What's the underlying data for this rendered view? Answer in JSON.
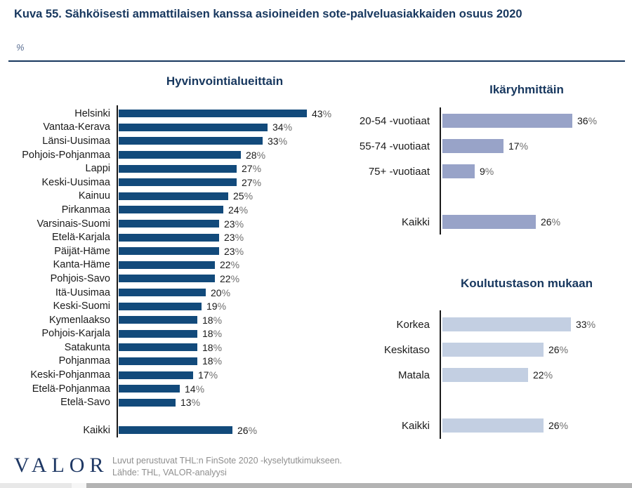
{
  "header": {
    "title": "Kuva 55. Sähköisesti ammattilaisen kanssa asioineiden sote-palveluasiakkaiden osuus 2020",
    "unit_label": "%"
  },
  "chart_data": [
    {
      "type": "bar",
      "orientation": "horizontal",
      "title": "Hyvinvointialueittain",
      "unit": "%",
      "bar_color": "#124A7B",
      "xlim": [
        0,
        45
      ],
      "gap_before_last": true,
      "categories": [
        "Helsinki",
        "Vantaa-Kerava",
        "Länsi-Uusimaa",
        "Pohjois-Pohjanmaa",
        "Lappi",
        "Keski-Uusimaa",
        "Kainuu",
        "Pirkanmaa",
        "Varsinais-Suomi",
        "Etelä-Karjala",
        "Päijät-Häme",
        "Kanta-Häme",
        "Pohjois-Savo",
        "Itä-Uusimaa",
        "Keski-Suomi",
        "Kymenlaakso",
        "Pohjois-Karjala",
        "Satakunta",
        "Pohjanmaa",
        "Keski-Pohjanmaa",
        "Etelä-Pohjanmaa",
        "Etelä-Savo",
        "Kaikki"
      ],
      "values": [
        43,
        34,
        33,
        28,
        27,
        27,
        25,
        24,
        23,
        23,
        23,
        22,
        22,
        20,
        19,
        18,
        18,
        18,
        18,
        17,
        14,
        13,
        26
      ]
    },
    {
      "type": "bar",
      "orientation": "horizontal",
      "title": "Ikäryhmittäin",
      "unit": "%",
      "bar_color": "#98A3C8",
      "xlim": [
        0,
        53
      ],
      "gap_before_last": true,
      "categories": [
        "20-54 -vuotiaat",
        "55-74 -vuotiaat",
        "75+ -vuotiaat",
        "Kaikki"
      ],
      "values": [
        36,
        17,
        9,
        26
      ]
    },
    {
      "type": "bar",
      "orientation": "horizontal",
      "title": "Koulutustason mukaan",
      "unit": "%",
      "bar_color": "#C3CFE2",
      "xlim": [
        0,
        49
      ],
      "gap_before_last": true,
      "categories": [
        "Korkea",
        "Keskitaso",
        "Matala",
        "Kaikki"
      ],
      "values": [
        33,
        26,
        22,
        26
      ]
    }
  ],
  "footer": {
    "logo": "VALOR",
    "note_line1": "Luvut perustuvat THL:n FinSote 2020 -kyselytutkimukseen.",
    "note_line2": "Lähde: THL, VALOR-analyysi"
  },
  "colors": {
    "title_navy": "#17375E",
    "bar_dark_blue": "#124A7B",
    "bar_medium_blue": "#98A3C8",
    "bar_light_blue": "#C3CFE2",
    "axis_black": "#1a1a1a",
    "note_gray": "#8f8f8f",
    "logo_navy": "#1F3864"
  }
}
